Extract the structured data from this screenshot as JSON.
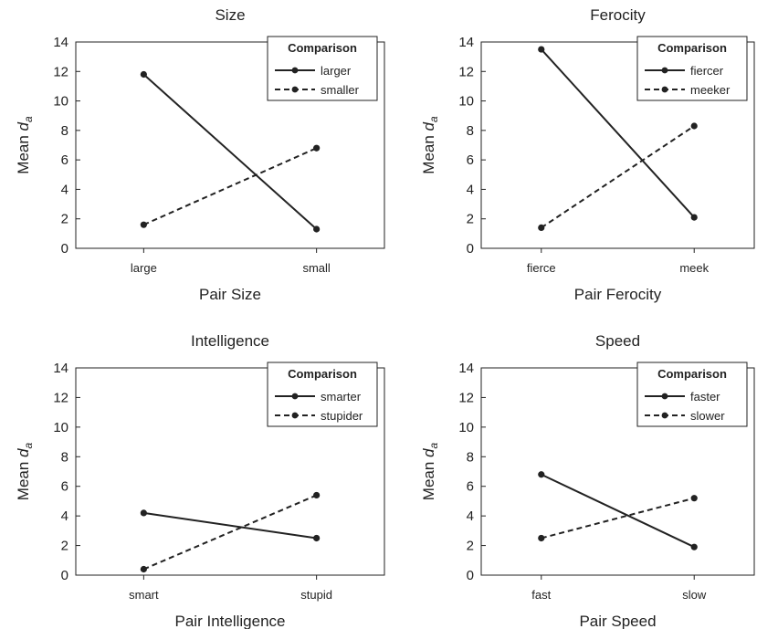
{
  "chart_data": [
    {
      "type": "line",
      "title": "Size",
      "xlabel": "Pair Size",
      "ylabel": "Mean",
      "ylabel_sub": "a",
      "categories": [
        "large",
        "small"
      ],
      "ylim": [
        0,
        14
      ],
      "yticks": [
        0,
        2,
        4,
        6,
        8,
        10,
        12,
        14
      ],
      "legend_title": "Comparison",
      "legend_position": "top-right",
      "series": [
        {
          "name": "larger",
          "style": "solid",
          "values": [
            11.8,
            1.3
          ]
        },
        {
          "name": "smaller",
          "style": "dashed",
          "values": [
            1.6,
            6.8
          ]
        }
      ]
    },
    {
      "type": "line",
      "title": "Ferocity",
      "xlabel": "Pair Ferocity",
      "ylabel": "Mean",
      "ylabel_sub": "a",
      "categories": [
        "fierce",
        "meek"
      ],
      "ylim": [
        0,
        14
      ],
      "yticks": [
        0,
        2,
        4,
        6,
        8,
        10,
        12,
        14
      ],
      "legend_title": "Comparison",
      "legend_position": "top-right",
      "series": [
        {
          "name": "fiercer",
          "style": "solid",
          "values": [
            13.5,
            2.1
          ]
        },
        {
          "name": "meeker",
          "style": "dashed",
          "values": [
            1.4,
            8.3
          ]
        }
      ]
    },
    {
      "type": "line",
      "title": "Intelligence",
      "xlabel": "Pair Intelligence",
      "ylabel": "Mean",
      "ylabel_sub": "a",
      "categories": [
        "smart",
        "stupid"
      ],
      "ylim": [
        0,
        14
      ],
      "yticks": [
        0,
        2,
        4,
        6,
        8,
        10,
        12,
        14
      ],
      "legend_title": "Comparison",
      "legend_position": "top-right",
      "series": [
        {
          "name": "smarter",
          "style": "solid",
          "values": [
            4.2,
            2.5
          ]
        },
        {
          "name": "stupider",
          "style": "dashed",
          "values": [
            0.4,
            5.4
          ]
        }
      ]
    },
    {
      "type": "line",
      "title": "Speed",
      "xlabel": "Pair Speed",
      "ylabel": "Mean",
      "ylabel_sub": "a",
      "categories": [
        "fast",
        "slow"
      ],
      "ylim": [
        0,
        14
      ],
      "yticks": [
        0,
        2,
        4,
        6,
        8,
        10,
        12,
        14
      ],
      "legend_title": "Comparison",
      "legend_position": "top-right",
      "series": [
        {
          "name": "faster",
          "style": "solid",
          "values": [
            6.8,
            1.9
          ]
        },
        {
          "name": "slower",
          "style": "dashed",
          "values": [
            2.5,
            5.2
          ]
        }
      ]
    }
  ],
  "colors": {
    "line": "#222222",
    "axis": "#222222",
    "background": "#ffffff"
  }
}
